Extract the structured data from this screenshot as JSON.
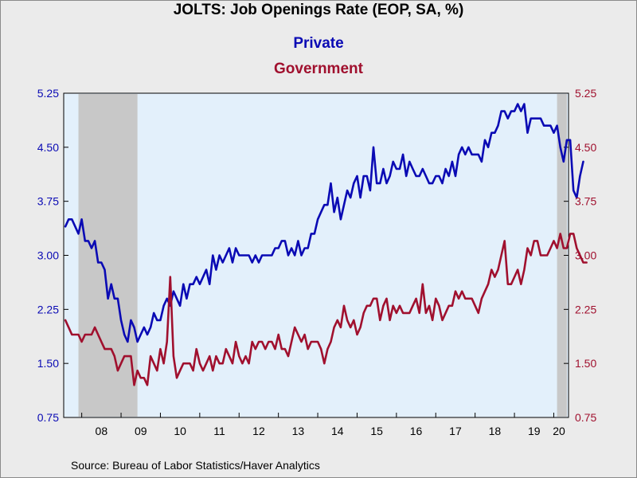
{
  "chart_data": {
    "type": "line",
    "title": "JOLTS: Job Openings Rate (EOP, SA, %)",
    "x_start": "2007-08",
    "x_end": "2020-05",
    "x_tick_labels": [
      "08",
      "09",
      "10",
      "11",
      "12",
      "13",
      "14",
      "15",
      "16",
      "17",
      "18",
      "19",
      "20"
    ],
    "y_ticks": [
      0.75,
      1.5,
      2.25,
      3.0,
      3.75,
      4.5,
      5.25
    ],
    "y_tick_labels": [
      "0.75",
      "1.50",
      "2.25",
      "3.00",
      "3.75",
      "4.50",
      "5.25"
    ],
    "ylim": [
      0.75,
      5.25
    ],
    "y_axis_sides": [
      "left",
      "right"
    ],
    "grid": false,
    "legend_placement": "top-center",
    "recessions": [
      {
        "start": "2007-12",
        "end": "2009-06"
      },
      {
        "start": "2020-02",
        "end": "2020-05"
      }
    ],
    "series": [
      {
        "name": "Private",
        "color": "#0a0ab4",
        "values": [
          3.4,
          3.5,
          3.5,
          3.4,
          3.3,
          3.5,
          3.2,
          3.2,
          3.1,
          3.2,
          2.9,
          2.9,
          2.8,
          2.4,
          2.6,
          2.4,
          2.4,
          2.1,
          1.9,
          1.8,
          2.1,
          2.0,
          1.8,
          1.9,
          2.0,
          1.9,
          2.0,
          2.2,
          2.1,
          2.1,
          2.3,
          2.4,
          2.3,
          2.5,
          2.4,
          2.3,
          2.6,
          2.4,
          2.6,
          2.6,
          2.7,
          2.6,
          2.7,
          2.8,
          2.6,
          3.0,
          2.8,
          3.0,
          2.9,
          3.0,
          3.1,
          2.9,
          3.1,
          3.0,
          3.0,
          3.0,
          3.0,
          2.9,
          3.0,
          2.9,
          3.0,
          3.0,
          3.0,
          3.0,
          3.1,
          3.1,
          3.2,
          3.2,
          3.0,
          3.1,
          3.0,
          3.2,
          3.0,
          3.1,
          3.1,
          3.3,
          3.3,
          3.5,
          3.6,
          3.7,
          3.7,
          4.0,
          3.6,
          3.8,
          3.5,
          3.7,
          3.9,
          3.8,
          4.0,
          4.1,
          3.8,
          4.1,
          4.1,
          3.9,
          4.5,
          4.0,
          4.0,
          4.2,
          4.0,
          4.1,
          4.3,
          4.2,
          4.2,
          4.4,
          4.1,
          4.3,
          4.2,
          4.1,
          4.1,
          4.2,
          4.1,
          4.0,
          4.0,
          4.1,
          4.1,
          4.0,
          4.2,
          4.1,
          4.3,
          4.1,
          4.4,
          4.5,
          4.4,
          4.5,
          4.4,
          4.4,
          4.4,
          4.3,
          4.6,
          4.5,
          4.7,
          4.7,
          4.8,
          5.0,
          5.0,
          4.9,
          5.0,
          5.0,
          5.1,
          5.0,
          5.1,
          4.7,
          4.9,
          4.9,
          4.9,
          4.9,
          4.8,
          4.8,
          4.8,
          4.7,
          4.8,
          4.5,
          4.3,
          4.6,
          4.6,
          3.9,
          3.8,
          4.1,
          4.3
        ]
      },
      {
        "name": "Government",
        "color": "#a0102e",
        "values": [
          2.1,
          2.0,
          1.9,
          1.9,
          1.9,
          1.8,
          1.9,
          1.9,
          1.9,
          2.0,
          1.9,
          1.8,
          1.7,
          1.7,
          1.7,
          1.6,
          1.4,
          1.5,
          1.6,
          1.6,
          1.6,
          1.2,
          1.4,
          1.3,
          1.3,
          1.2,
          1.6,
          1.5,
          1.4,
          1.7,
          1.5,
          1.8,
          2.7,
          1.6,
          1.3,
          1.4,
          1.5,
          1.5,
          1.5,
          1.4,
          1.7,
          1.5,
          1.4,
          1.5,
          1.6,
          1.4,
          1.6,
          1.5,
          1.5,
          1.7,
          1.6,
          1.5,
          1.8,
          1.6,
          1.5,
          1.6,
          1.5,
          1.8,
          1.7,
          1.8,
          1.8,
          1.7,
          1.8,
          1.8,
          1.7,
          1.9,
          1.7,
          1.7,
          1.6,
          1.8,
          2.0,
          1.9,
          1.8,
          1.9,
          1.7,
          1.8,
          1.8,
          1.8,
          1.7,
          1.5,
          1.7,
          1.8,
          2.0,
          2.1,
          2.0,
          2.3,
          2.1,
          2.0,
          2.1,
          1.9,
          2.0,
          2.2,
          2.3,
          2.3,
          2.4,
          2.4,
          2.1,
          2.3,
          2.4,
          2.1,
          2.3,
          2.2,
          2.3,
          2.2,
          2.2,
          2.2,
          2.3,
          2.4,
          2.2,
          2.6,
          2.2,
          2.3,
          2.1,
          2.4,
          2.3,
          2.1,
          2.2,
          2.3,
          2.3,
          2.5,
          2.4,
          2.5,
          2.4,
          2.4,
          2.4,
          2.3,
          2.2,
          2.4,
          2.5,
          2.6,
          2.8,
          2.7,
          2.8,
          3.0,
          3.2,
          2.6,
          2.6,
          2.7,
          2.8,
          2.6,
          2.8,
          3.1,
          3.0,
          3.2,
          3.2,
          3.0,
          3.0,
          3.0,
          3.1,
          3.2,
          3.1,
          3.3,
          3.1,
          3.1,
          3.3,
          3.3,
          3.1,
          3.0,
          2.9,
          2.9
        ]
      }
    ]
  },
  "source_text": "Source:  Bureau of Labor Statistics/Haver Analytics",
  "colors": {
    "private": "#0a0ab4",
    "government": "#a0102e",
    "plot_bg": "#e3f0fb",
    "recession_shade": "#c8c8c8",
    "page_bg": "#ebebeb"
  }
}
